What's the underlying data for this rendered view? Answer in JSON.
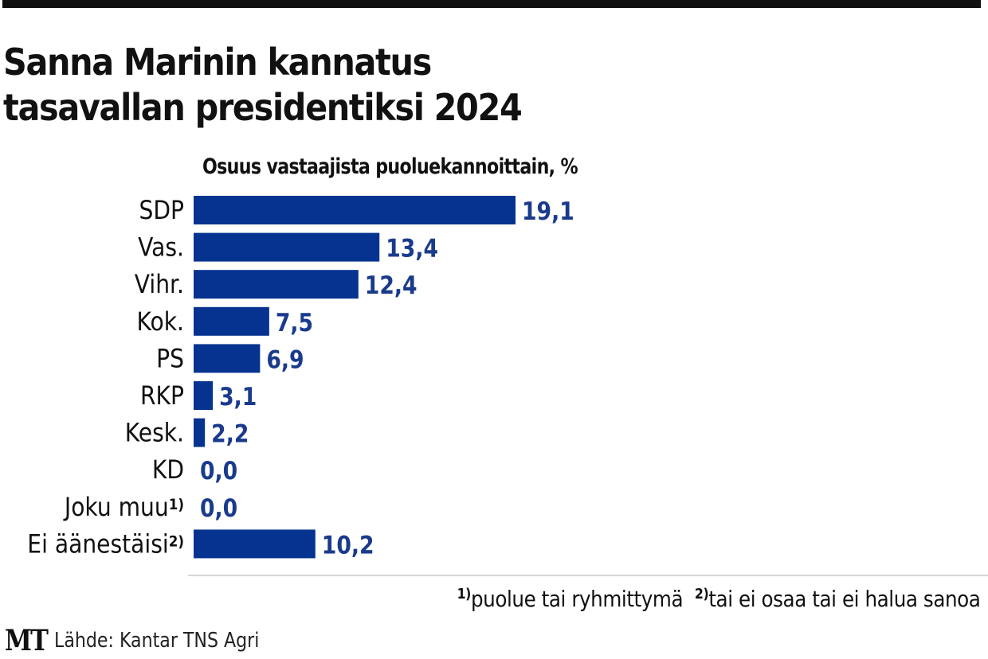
{
  "chart_data": {
    "type": "bar",
    "orientation": "horizontal",
    "title": "Sanna Marinin kannatus tasavallan presidentiksi 2024",
    "title_lines": [
      "Sanna Marinin kannatus",
      "tasavallan presidentiksi 2024"
    ],
    "subtitle": "Osuus vastaajista puoluekannoittain, %",
    "xlabel": "",
    "ylabel": "",
    "categories": [
      "SDP",
      "Vas.",
      "Vihr.",
      "Kok.",
      "PS",
      "RKP",
      "Kesk.",
      "KD",
      "Joku muu",
      "Ei äänestäisi"
    ],
    "category_footnote_marks": [
      "",
      "",
      "",
      "",
      "",
      "",
      "",
      "",
      "1)",
      "2)"
    ],
    "values": [
      19.1,
      13.4,
      12.4,
      7.5,
      6.9,
      3.1,
      2.2,
      0.0,
      0.0,
      10.2
    ],
    "value_labels": [
      "19,1",
      "13,4",
      "12,4",
      "7,5",
      "6,9",
      "3,1",
      "2,2",
      "0,0",
      "0,0",
      "10,2"
    ],
    "bar_color": "#05338f",
    "label_color": "#1a3b8c",
    "grid": false,
    "legend": "none"
  },
  "footnotes": [
    {
      "mark": "1)",
      "text": "puolue tai ryhmittymä"
    },
    {
      "mark": "2)",
      "text": "tai ei osaa tai ei halua sanoa"
    }
  ],
  "source": {
    "logo": "MT",
    "text": "Lähde: Kantar TNS Agri"
  }
}
